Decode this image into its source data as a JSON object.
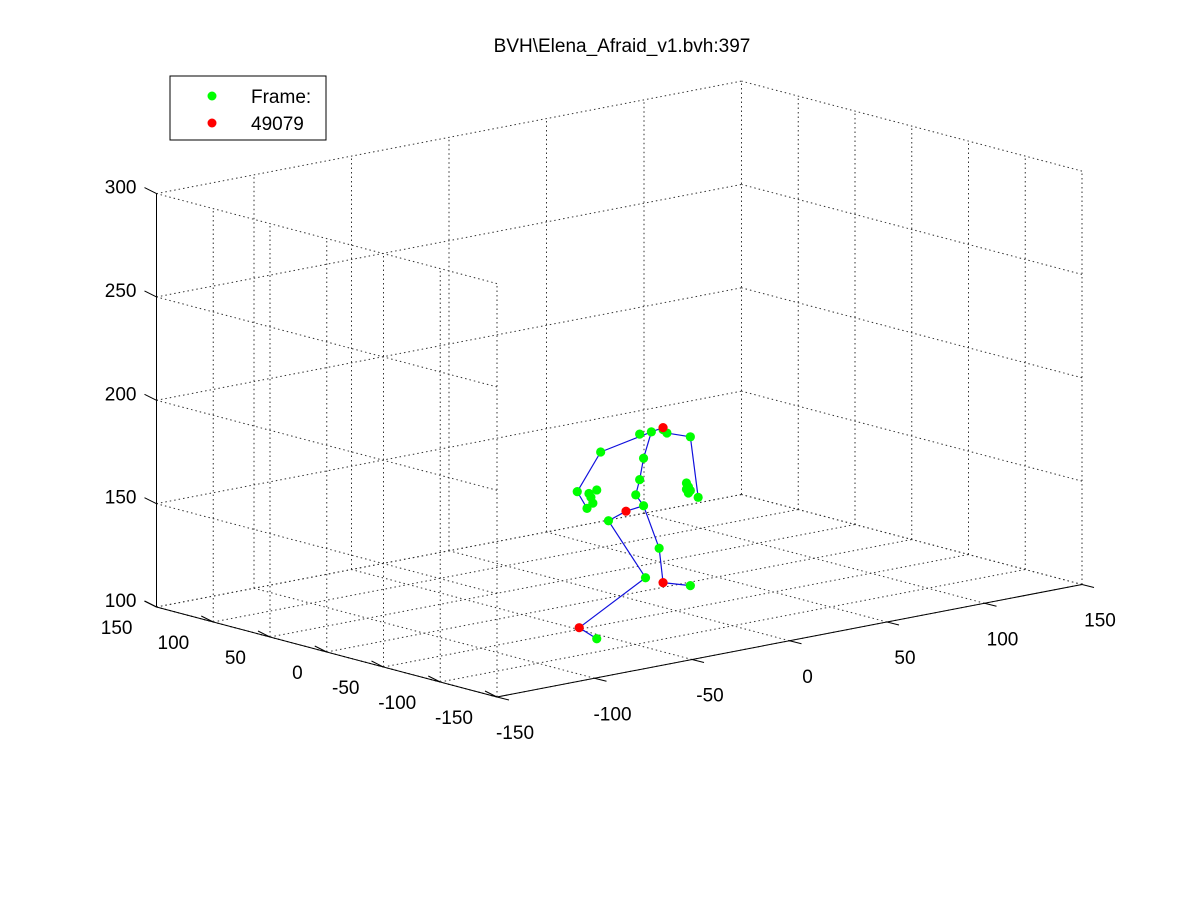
{
  "chart_data": {
    "type": "scatter",
    "title": "BVH\\Elena_Afraid_v1.bvh:397",
    "xlabel": "",
    "ylabel": "",
    "zlabel": "",
    "xlim": [
      -150,
      150
    ],
    "ylim": [
      -150,
      150
    ],
    "zlim": [
      100,
      300
    ],
    "x_ticks": [
      "-150",
      "-100",
      "-50",
      "0",
      "50",
      "100",
      "150"
    ],
    "y_ticks": [
      "-150",
      "-100",
      "-50",
      "0",
      "50",
      "100",
      "150"
    ],
    "z_ticks": [
      "100",
      "150",
      "200",
      "250",
      "300"
    ],
    "grid": true,
    "legend_position": "top-left",
    "legend": [
      {
        "label": "Frame:",
        "color": "#00ff00"
      },
      {
        "label": "49079",
        "color": "#ff0000"
      }
    ],
    "colors": {
      "joint": "#00ff00",
      "end_effector": "#ff0000",
      "bone": "#1010dd"
    },
    "series": [
      {
        "color": "#00ff00",
        "points": [
          {
            "x": 38,
            "y": 37,
            "z": 167
          },
          {
            "x": 32,
            "y": 37,
            "z": 167
          },
          {
            "x": 44,
            "y": 37,
            "z": 167
          },
          {
            "x": 46,
            "y": 37,
            "z": 165
          },
          {
            "x": 58,
            "y": 37,
            "z": 161
          },
          {
            "x": 12,
            "y": 37,
            "z": 162
          },
          {
            "x": 34,
            "y": 37,
            "z": 155
          },
          {
            "x": 32,
            "y": 37,
            "z": 145
          },
          {
            "x": 30,
            "y": 37,
            "z": 138
          },
          {
            "x": 34,
            "y": 37,
            "z": 132
          },
          {
            "x": 16,
            "y": 37,
            "z": 128
          },
          {
            "x": 56,
            "y": 37,
            "z": 139
          },
          {
            "x": 57,
            "y": 37,
            "z": 137
          },
          {
            "x": 56,
            "y": 37,
            "z": 136
          },
          {
            "x": 58,
            "y": 37,
            "z": 135
          },
          {
            "x": 57,
            "y": 37,
            "z": 134
          },
          {
            "x": 62,
            "y": 37,
            "z": 131
          },
          {
            "x": 0,
            "y": 37,
            "z": 145
          },
          {
            "x": 6,
            "y": 37,
            "z": 143
          },
          {
            "x": 7,
            "y": 37,
            "z": 141
          },
          {
            "x": 10,
            "y": 37,
            "z": 144
          },
          {
            "x": 8,
            "y": 37,
            "z": 138
          },
          {
            "x": 5,
            "y": 37,
            "z": 136
          },
          {
            "x": 42,
            "y": 37,
            "z": 110
          },
          {
            "x": 35,
            "y": 37,
            "z": 97
          },
          {
            "x": 58,
            "y": 37,
            "z": 89
          },
          {
            "x": 10,
            "y": 37,
            "z": 72
          }
        ]
      },
      {
        "color": "#ff0000",
        "points": [
          {
            "x": 44,
            "y": 37,
            "z": 168
          },
          {
            "x": 25,
            "y": 37,
            "z": 131
          },
          {
            "x": 44,
            "y": 37,
            "z": 93
          },
          {
            "x": 1,
            "y": 37,
            "z": 79
          }
        ]
      }
    ],
    "bones": [
      [
        [
          12,
          162
        ],
        [
          38,
          167
        ]
      ],
      [
        [
          38,
          167
        ],
        [
          44,
          168
        ]
      ],
      [
        [
          44,
          168
        ],
        [
          46,
          165
        ]
      ],
      [
        [
          46,
          165
        ],
        [
          58,
          161
        ]
      ],
      [
        [
          58,
          161
        ],
        [
          62,
          131
        ]
      ],
      [
        [
          12,
          162
        ],
        [
          0,
          145
        ]
      ],
      [
        [
          0,
          145
        ],
        [
          5,
          136
        ]
      ],
      [
        [
          38,
          167
        ],
        [
          34,
          155
        ]
      ],
      [
        [
          34,
          155
        ],
        [
          32,
          145
        ]
      ],
      [
        [
          32,
          145
        ],
        [
          30,
          138
        ]
      ],
      [
        [
          30,
          138
        ],
        [
          34,
          132
        ]
      ],
      [
        [
          34,
          132
        ],
        [
          25,
          131
        ]
      ],
      [
        [
          25,
          131
        ],
        [
          16,
          128
        ]
      ],
      [
        [
          16,
          128
        ],
        [
          35,
          97
        ]
      ],
      [
        [
          35,
          97
        ],
        [
          1,
          79
        ]
      ],
      [
        [
          1,
          79
        ],
        [
          10,
          72
        ]
      ],
      [
        [
          34,
          132
        ],
        [
          42,
          110
        ]
      ],
      [
        [
          42,
          110
        ],
        [
          44,
          93
        ]
      ],
      [
        [
          44,
          93
        ],
        [
          58,
          89
        ]
      ]
    ]
  }
}
